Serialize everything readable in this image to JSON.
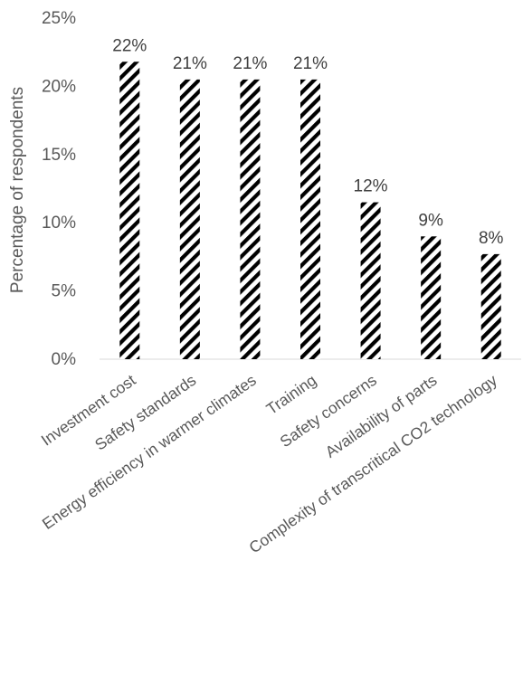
{
  "chart_data": {
    "type": "bar",
    "title": "",
    "xlabel": "",
    "ylabel": "Percentage of respondents",
    "ylim": [
      0,
      25
    ],
    "yticks": [
      "0%",
      "5%",
      "10%",
      "15%",
      "20%",
      "25%"
    ],
    "ytick_values": [
      0,
      5,
      10,
      15,
      20,
      25
    ],
    "grid": false,
    "legend": "none",
    "bar_pattern": "diagonal-hatch",
    "bar_colors": {
      "stripe": "#000000",
      "background": "#ffffff"
    },
    "categories": [
      "Investment cost",
      "Safety standards",
      "Energy efficiency in warmer climates",
      "Training",
      "Safety concerns",
      "Availability of parts",
      "Complexity of transcritical CO2 technology"
    ],
    "values": [
      21.8,
      20.5,
      20.5,
      20.5,
      11.5,
      9.0,
      7.7
    ],
    "data_labels": [
      "22%",
      "21%",
      "21%",
      "21%",
      "12%",
      "9%",
      "8%"
    ]
  }
}
